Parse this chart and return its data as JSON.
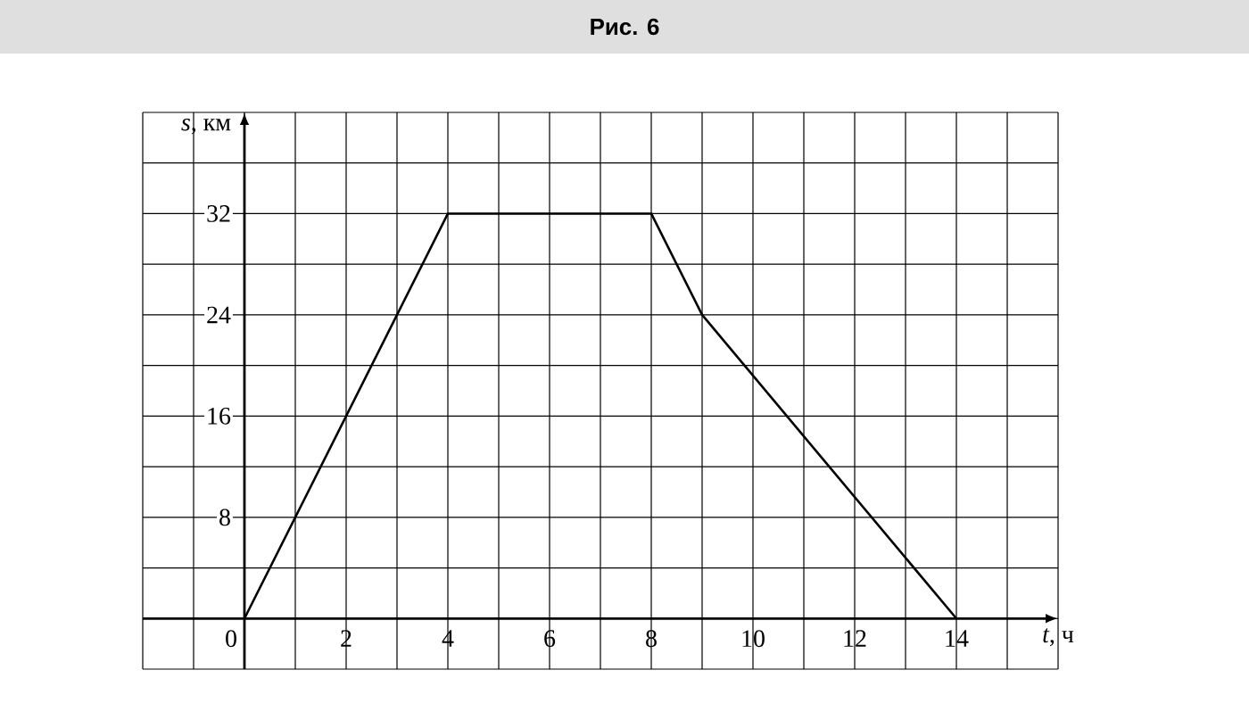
{
  "chart_data": {
    "type": "line",
    "title": "Рис. 6",
    "xlabel": "*t*, ч",
    "ylabel": "*s*, км",
    "x": [
      0,
      4,
      8,
      9,
      14
    ],
    "values": [
      0,
      32,
      32,
      24,
      0
    ],
    "color": "#000000",
    "xlim": [
      -2,
      16
    ],
    "ylim": [
      -4,
      40
    ],
    "xticks": [
      {
        "value": -2,
        "label": null
      },
      {
        "value": -1,
        "label": null
      },
      0,
      {
        "value": 1,
        "label": null
      },
      2,
      {
        "value": 3,
        "label": null
      },
      4,
      {
        "value": 5,
        "label": null
      },
      6,
      {
        "value": 7,
        "label": null
      },
      8,
      {
        "value": 9,
        "label": null
      },
      10,
      {
        "value": 11,
        "label": null
      },
      12,
      {
        "value": 13,
        "label": null
      },
      14,
      {
        "value": 15,
        "label": null
      },
      {
        "value": 16,
        "label": null
      }
    ],
    "yticks": [
      {
        "value": -4,
        "label": null
      },
      {
        "value": 0,
        "label": null
      },
      {
        "value": 4,
        "label": null
      },
      8,
      {
        "value": 12,
        "label": null
      },
      16,
      {
        "value": 20,
        "label": null
      },
      24,
      {
        "value": 28,
        "label": null
      },
      32,
      {
        "value": 36,
        "label": null
      },
      {
        "value": 40,
        "label": null
      }
    ],
    "grid": true
  }
}
